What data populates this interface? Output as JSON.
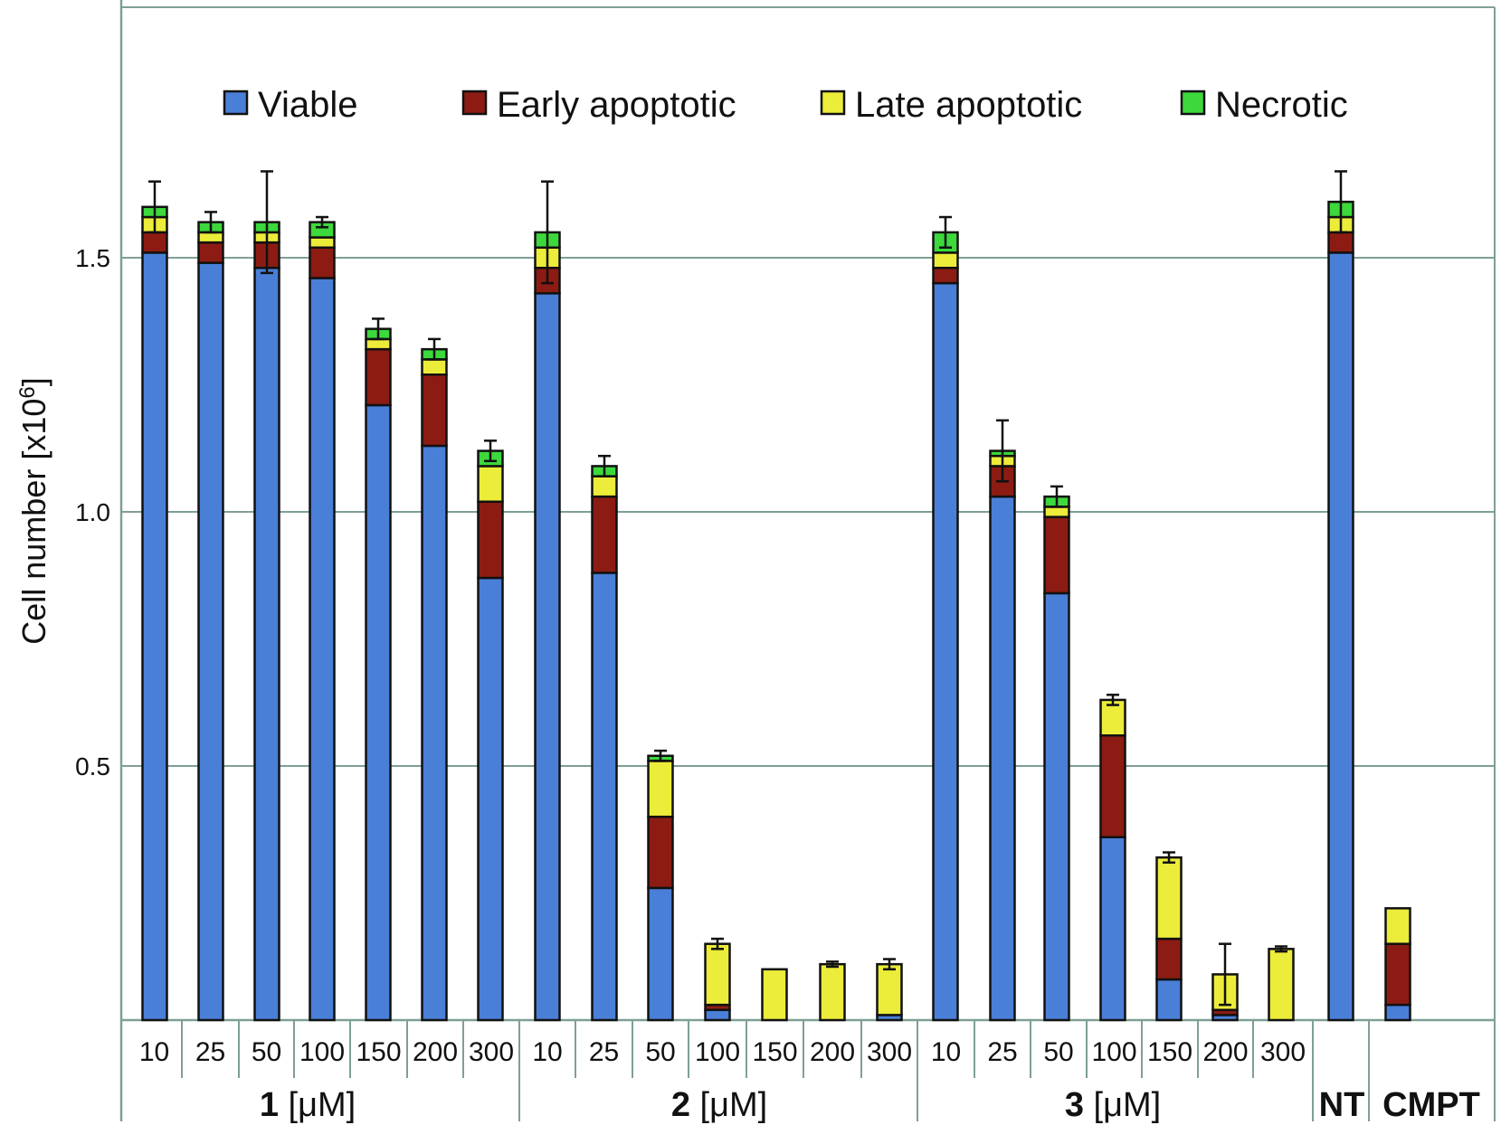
{
  "chart_data": {
    "type": "bar",
    "stacked": true,
    "ylabel": "Cell number [x10",
    "ylabel_sup": "6",
    "ylabel_end": "]",
    "ylim": [
      0,
      2.0
    ],
    "yticks": [
      0.5,
      1.0,
      1.5
    ],
    "ytick_labels": [
      "0.5",
      "1.0",
      "1.5"
    ],
    "grid": true,
    "legend_position": "top",
    "series": [
      {
        "name": "Viable",
        "color": "#4a7fd8"
      },
      {
        "name": "Early apoptotic",
        "color": "#8c1c13"
      },
      {
        "name": "Late apoptotic",
        "color": "#ecec3a"
      },
      {
        "name": "Necrotic",
        "color": "#3cd83c"
      }
    ],
    "groups": [
      {
        "bold": "1",
        "unit": " [μM]",
        "categories": [
          "10",
          "25",
          "50",
          "100",
          "150",
          "200",
          "300"
        ]
      },
      {
        "bold": "2",
        "unit": " [μM]",
        "categories": [
          "10",
          "25",
          "50",
          "100",
          "150",
          "200",
          "300"
        ]
      },
      {
        "bold": "3",
        "unit": " [μM]",
        "categories": [
          "10",
          "25",
          "50",
          "100",
          "150",
          "200",
          "300"
        ]
      },
      {
        "bold": "NT",
        "unit": "",
        "categories": [
          ""
        ]
      },
      {
        "bold": "CMPT",
        "unit": "",
        "categories": [
          ""
        ]
      }
    ],
    "bars": [
      {
        "values": [
          1.51,
          0.04,
          0.03,
          0.02
        ],
        "error": 0.05
      },
      {
        "values": [
          1.49,
          0.04,
          0.02,
          0.02
        ],
        "error": 0.02
      },
      {
        "values": [
          1.48,
          0.05,
          0.02,
          0.02
        ],
        "error": 0.1
      },
      {
        "values": [
          1.46,
          0.06,
          0.02,
          0.03
        ],
        "error": 0.01
      },
      {
        "values": [
          1.21,
          0.11,
          0.02,
          0.02
        ],
        "error": 0.02
      },
      {
        "values": [
          1.13,
          0.14,
          0.03,
          0.02
        ],
        "error": 0.02
      },
      {
        "values": [
          0.87,
          0.15,
          0.07,
          0.03
        ],
        "error": 0.02
      },
      {
        "values": [
          1.43,
          0.05,
          0.04,
          0.03
        ],
        "error": 0.1
      },
      {
        "values": [
          0.88,
          0.15,
          0.04,
          0.02
        ],
        "error": 0.02
      },
      {
        "values": [
          0.26,
          0.14,
          0.11,
          0.01
        ],
        "error": 0.01
      },
      {
        "values": [
          0.02,
          0.01,
          0.12,
          0.0
        ],
        "error": 0.01
      },
      {
        "values": [
          0.0,
          0.0,
          0.1,
          0.0
        ],
        "error": 0.0
      },
      {
        "values": [
          0.0,
          0.0,
          0.11,
          0.0
        ],
        "error": 0.005
      },
      {
        "values": [
          0.01,
          0.0,
          0.1,
          0.0
        ],
        "error": 0.01
      },
      {
        "values": [
          1.45,
          0.03,
          0.03,
          0.04
        ],
        "error": 0.03
      },
      {
        "values": [
          1.03,
          0.06,
          0.02,
          0.01
        ],
        "error": 0.06
      },
      {
        "values": [
          0.84,
          0.15,
          0.02,
          0.02
        ],
        "error": 0.02
      },
      {
        "values": [
          0.36,
          0.2,
          0.07,
          0.0
        ],
        "error": 0.01
      },
      {
        "values": [
          0.08,
          0.08,
          0.16,
          0.0
        ],
        "error": 0.01
      },
      {
        "values": [
          0.01,
          0.01,
          0.07,
          0.0
        ],
        "error": 0.06
      },
      {
        "values": [
          0.0,
          0.0,
          0.14,
          0.0
        ],
        "error": 0.005
      },
      {
        "values": [
          1.51,
          0.04,
          0.03,
          0.03
        ],
        "error": 0.06
      },
      {
        "values": [
          0.03,
          0.12,
          0.07,
          0.0
        ],
        "error": 0.0
      }
    ]
  }
}
